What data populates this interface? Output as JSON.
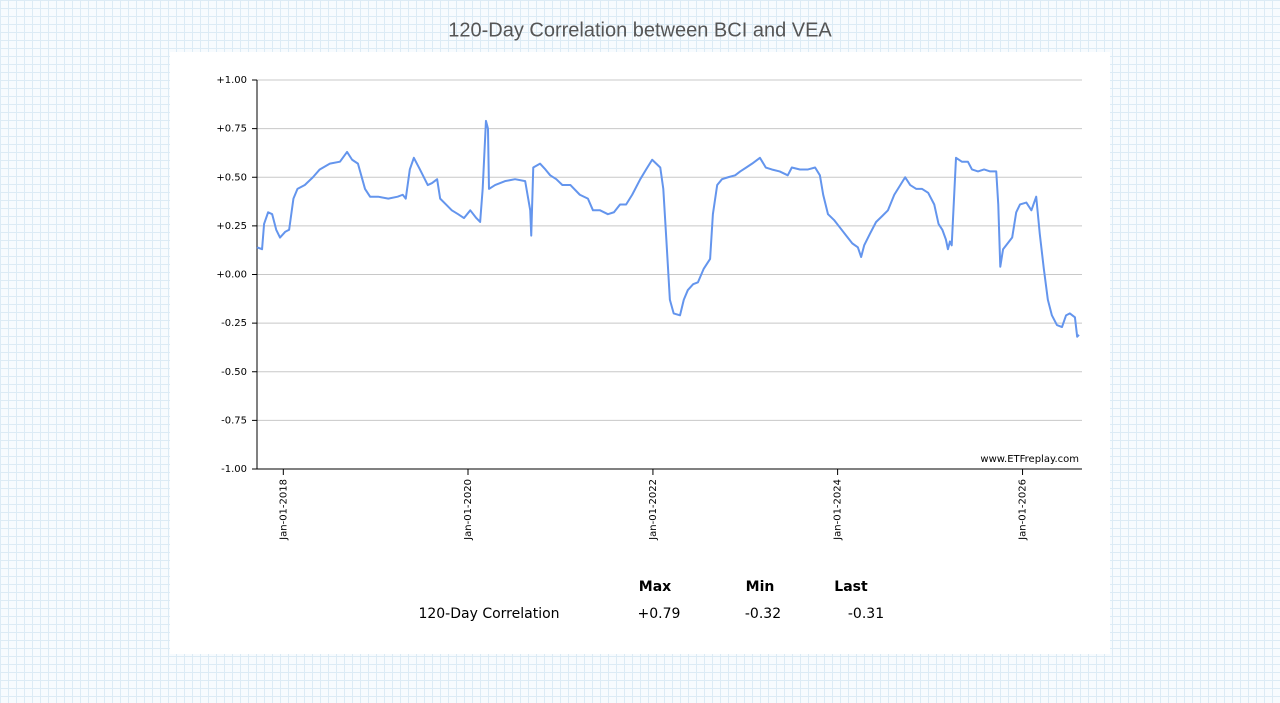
{
  "chart_data": {
    "type": "line",
    "title": "120-Day Correlation between BCI and VEA",
    "watermark": "www.ETFreplay.com",
    "x": [
      "2017-09-19",
      "2017-10-09",
      "2017-10-17",
      "2017-11-02",
      "2017-11-18",
      "2017-12-04",
      "2017-12-19",
      "2018-01-09",
      "2018-01-24",
      "2018-02-10",
      "2018-02-26",
      "2018-03-27",
      "2018-04-28",
      "2018-05-25",
      "2018-07-04",
      "2018-08-13",
      "2018-09-10",
      "2018-09-30",
      "2018-10-23",
      "2018-11-20",
      "2018-12-10",
      "2019-01-11",
      "2019-02-20",
      "2019-03-29",
      "2019-04-18",
      "2019-04-30",
      "2019-05-16",
      "2019-06-01",
      "2019-06-25",
      "2019-07-26",
      "2019-08-12",
      "2019-09-01",
      "2019-09-13",
      "2019-10-06",
      "2019-10-29",
      "2019-11-23",
      "2019-12-16",
      "2020-01-10",
      "2020-02-03",
      "2020-02-18",
      "2020-02-28",
      "2020-03-12",
      "2020-03-20",
      "2020-03-24",
      "2020-04-17",
      "2020-05-26",
      "2020-07-05",
      "2020-08-14",
      "2020-09-03",
      "2020-09-07",
      "2020-09-15",
      "2020-10-12",
      "2020-11-02",
      "2020-11-21",
      "2020-12-15",
      "2021-01-08",
      "2021-02-09",
      "2021-03-18",
      "2021-04-19",
      "2021-05-09",
      "2021-06-06",
      "2021-07-07",
      "2021-07-31",
      "2021-08-24",
      "2021-09-17",
      "2021-10-11",
      "2021-11-12",
      "2021-12-05",
      "2021-12-29",
      "2022-01-30",
      "2022-02-11",
      "2022-02-23",
      "2022-03-09",
      "2022-03-24",
      "2022-04-18",
      "2022-05-03",
      "2022-05-19",
      "2022-06-09",
      "2022-06-28",
      "2022-07-21",
      "2022-08-15",
      "2022-08-26",
      "2022-09-12",
      "2022-10-01",
      "2022-10-25",
      "2022-11-22",
      "2022-12-12",
      "2023-01-05",
      "2023-01-28",
      "2023-02-28",
      "2023-03-23",
      "2023-04-16",
      "2023-05-17",
      "2023-06-18",
      "2023-07-04",
      "2023-08-05",
      "2023-09-06",
      "2023-10-04",
      "2023-10-23",
      "2023-11-05",
      "2023-11-24",
      "2023-12-18",
      "2024-01-11",
      "2024-02-04",
      "2024-02-28",
      "2024-03-21",
      "2024-04-03",
      "2024-04-15",
      "2024-05-08",
      "2024-06-01",
      "2024-06-25",
      "2024-07-18",
      "2024-08-12",
      "2024-09-05",
      "2024-09-24",
      "2024-10-14",
      "2024-11-07",
      "2024-11-30",
      "2024-12-24",
      "2025-01-17",
      "2025-02-03",
      "2025-02-18",
      "2025-03-04",
      "2025-03-12",
      "2025-03-20",
      "2025-03-27",
      "2025-04-13",
      "2025-05-06",
      "2025-05-30",
      "2025-06-15",
      "2025-07-09",
      "2025-08-02",
      "2025-08-26",
      "2025-09-19",
      "2025-09-27",
      "2025-10-05",
      "2025-10-16",
      "2025-10-28",
      "2025-11-21",
      "2025-12-07",
      "2025-12-22",
      "2026-01-16",
      "2026-02-05",
      "2026-02-24",
      "2026-03-10",
      "2026-03-26",
      "2026-04-11",
      "2026-04-27",
      "2026-05-17",
      "2026-06-06",
      "2026-06-22",
      "2026-07-07",
      "2026-07-27",
      "2026-08-05",
      "2026-08-12"
    ],
    "series": [
      {
        "name": "120-Day Correlation",
        "color": "#6495ed",
        "values": [
          0.14,
          0.13,
          0.26,
          0.32,
          0.31,
          0.23,
          0.19,
          0.22,
          0.23,
          0.39,
          0.44,
          0.46,
          0.5,
          0.54,
          0.57,
          0.58,
          0.63,
          0.59,
          0.57,
          0.44,
          0.4,
          0.4,
          0.39,
          0.4,
          0.41,
          0.39,
          0.54,
          0.6,
          0.54,
          0.46,
          0.47,
          0.49,
          0.39,
          0.36,
          0.33,
          0.31,
          0.29,
          0.33,
          0.29,
          0.27,
          0.44,
          0.79,
          0.75,
          0.44,
          0.46,
          0.48,
          0.49,
          0.48,
          0.33,
          0.2,
          0.55,
          0.57,
          0.54,
          0.51,
          0.49,
          0.46,
          0.46,
          0.41,
          0.39,
          0.33,
          0.33,
          0.31,
          0.32,
          0.36,
          0.36,
          0.41,
          0.49,
          0.54,
          0.59,
          0.55,
          0.44,
          0.18,
          -0.13,
          -0.2,
          -0.21,
          -0.13,
          -0.08,
          -0.05,
          -0.04,
          0.03,
          0.08,
          0.31,
          0.46,
          0.49,
          0.5,
          0.51,
          0.53,
          0.55,
          0.57,
          0.6,
          0.55,
          0.54,
          0.53,
          0.51,
          0.55,
          0.54,
          0.54,
          0.55,
          0.51,
          0.41,
          0.31,
          0.28,
          0.24,
          0.2,
          0.16,
          0.14,
          0.09,
          0.15,
          0.21,
          0.27,
          0.3,
          0.33,
          0.41,
          0.46,
          0.5,
          0.46,
          0.44,
          0.44,
          0.42,
          0.36,
          0.26,
          0.23,
          0.18,
          0.13,
          0.17,
          0.15,
          0.6,
          0.58,
          0.58,
          0.54,
          0.53,
          0.54,
          0.53,
          0.53,
          0.36,
          0.04,
          0.13,
          0.15,
          0.19,
          0.32,
          0.36,
          0.37,
          0.33,
          0.4,
          0.21,
          0.03,
          -0.13,
          -0.21,
          -0.26,
          -0.27,
          -0.21,
          -0.2,
          -0.22,
          -0.32,
          -0.31
        ]
      }
    ],
    "xlim": [
      "2017-09-19",
      "2026-08-24"
    ],
    "xticks": [
      {
        "value": "2018-01-01",
        "label": "Jan-01-2018"
      },
      {
        "value": "2020-01-01",
        "label": "Jan-01-2020"
      },
      {
        "value": "2022-01-01",
        "label": "Jan-01-2022"
      },
      {
        "value": "2024-01-01",
        "label": "Jan-01-2024"
      },
      {
        "value": "2026-01-01",
        "label": "Jan-01-2026"
      }
    ],
    "ylim": [
      -1,
      1
    ],
    "yticks": [
      {
        "value": -1,
        "label": "-1.00"
      },
      {
        "value": -0.75,
        "label": "-0.75"
      },
      {
        "value": -0.5,
        "label": "-0.50"
      },
      {
        "value": -0.25,
        "label": "-0.25"
      },
      {
        "value": 0,
        "label": "+0.00"
      },
      {
        "value": 0.25,
        "label": "+0.25"
      },
      {
        "value": 0.5,
        "label": "+0.50"
      },
      {
        "value": 0.75,
        "label": "+0.75"
      },
      {
        "value": 1,
        "label": "+1.00"
      }
    ],
    "grid": true,
    "stats": {
      "columns": [
        "Max",
        "Min",
        "Last"
      ],
      "values": [
        0.79,
        -0.32,
        -0.31
      ],
      "value_labels": [
        "+0.79",
        "-0.32",
        "-0.31"
      ]
    }
  }
}
